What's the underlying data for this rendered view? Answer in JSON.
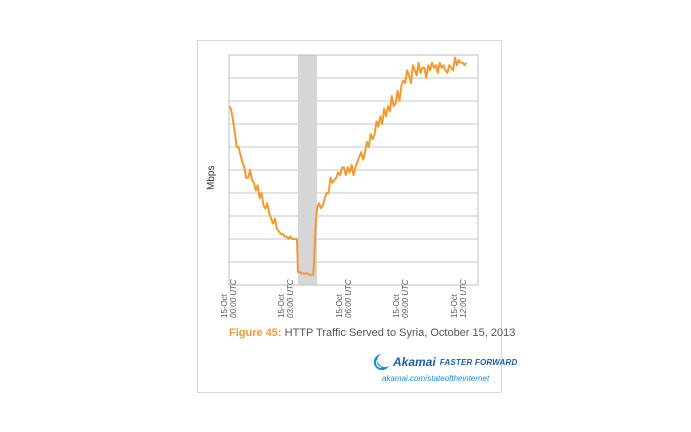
{
  "chart_data": {
    "type": "line",
    "ylabel": "Mbps",
    "x_ticks": [
      {
        "line1": "15-Oct",
        "line2": "00:00 UTC",
        "hour": 0
      },
      {
        "line1": "15-Oct",
        "line2": "03:00 UTC",
        "hour": 3
      },
      {
        "line1": "15-Oct",
        "line2": "06:00 UTC",
        "hour": 6
      },
      {
        "line1": "15-Oct",
        "line2": "09:00 UTC",
        "hour": 9
      },
      {
        "line1": "15-Oct",
        "line2": "12:00 UTC",
        "hour": 12
      }
    ],
    "xlim": [
      0,
      13
    ],
    "ylim": [
      0,
      9
    ],
    "grid": true,
    "shaded_region": [
      3.6,
      4.6
    ],
    "line_color": "#f39a2e",
    "shade_color": "#d6d6d6",
    "series": [
      {
        "x": [
          0.0,
          0.1,
          0.2,
          0.3,
          0.4,
          0.5,
          0.6,
          0.7,
          0.8,
          0.9,
          1.0,
          1.1,
          1.2,
          1.3,
          1.4,
          1.5,
          1.6,
          1.7,
          1.8,
          1.9,
          2.0,
          2.1,
          2.2,
          2.3,
          2.4,
          2.5,
          2.6,
          2.7,
          2.8,
          2.9,
          3.0,
          3.1,
          3.2,
          3.3,
          3.4,
          3.5,
          3.55,
          3.6,
          3.7,
          3.8,
          3.9,
          4.0,
          4.1,
          4.2,
          4.3,
          4.4,
          4.45,
          4.5,
          4.55,
          4.6,
          4.7,
          4.8,
          4.9,
          5.0,
          5.1,
          5.2,
          5.3,
          5.4,
          5.5,
          5.6,
          5.7,
          5.8,
          5.9,
          6.0,
          6.1,
          6.2,
          6.3,
          6.4,
          6.5,
          6.6,
          6.7,
          6.8,
          6.9,
          7.0,
          7.1,
          7.2,
          7.3,
          7.4,
          7.5,
          7.6,
          7.7,
          7.8,
          7.9,
          8.0,
          8.1,
          8.2,
          8.3,
          8.4,
          8.5,
          8.6,
          8.7,
          8.8,
          8.9,
          9.0,
          9.1,
          9.2,
          9.3,
          9.4,
          9.5,
          9.6,
          9.7,
          9.8,
          9.9,
          10.0,
          10.1,
          10.2,
          10.3,
          10.4,
          10.5,
          10.6,
          10.7,
          10.8,
          10.9,
          11.0,
          11.1,
          11.2,
          11.3,
          11.4,
          11.5,
          11.6,
          11.7,
          11.8,
          11.9,
          12.0,
          12.1,
          12.2,
          12.3,
          12.4
        ],
        "y": [
          7.0,
          6.9,
          6.5,
          6.0,
          5.4,
          5.4,
          5.1,
          4.8,
          4.6,
          4.2,
          4.2,
          4.5,
          4.1,
          4.0,
          3.7,
          3.9,
          3.4,
          3.6,
          3.1,
          3.0,
          3.2,
          2.8,
          2.6,
          2.4,
          2.6,
          2.2,
          2.1,
          2.0,
          2.0,
          1.9,
          1.9,
          1.8,
          1.9,
          1.8,
          1.8,
          1.8,
          1.8,
          0.5,
          0.5,
          0.45,
          0.45,
          0.45,
          0.45,
          0.4,
          0.4,
          0.4,
          1.0,
          2.0,
          2.6,
          3.0,
          3.2,
          3.0,
          3.1,
          3.4,
          3.6,
          3.6,
          4.2,
          4.0,
          4.1,
          4.2,
          4.4,
          4.3,
          4.6,
          4.6,
          4.3,
          4.6,
          4.4,
          4.7,
          4.3,
          4.6,
          4.8,
          5.0,
          5.2,
          4.9,
          5.2,
          5.6,
          5.4,
          5.9,
          5.7,
          5.9,
          6.4,
          6.2,
          6.6,
          6.3,
          6.9,
          6.6,
          7.0,
          6.8,
          7.4,
          7.0,
          7.1,
          7.6,
          7.2,
          7.8,
          8.0,
          7.9,
          8.4,
          8.2,
          7.9,
          8.6,
          8.4,
          8.2,
          8.7,
          8.3,
          8.5,
          8.5,
          8.1,
          8.6,
          8.4,
          8.7,
          8.5,
          8.6,
          8.3,
          8.7,
          8.5,
          8.6,
          8.4,
          8.3,
          8.6,
          8.5,
          8.4,
          8.9,
          8.6,
          8.8,
          8.7,
          8.7,
          8.6,
          8.7
        ]
      }
    ]
  },
  "caption": {
    "figure": "Figure 45:",
    "text": "HTTP Traffic Served to Syria, October 15, 2013"
  },
  "logo": {
    "brand": "Akamai",
    "tagline": "FASTER FORWARD",
    "url": "akamai.com/stateoftheinternet"
  }
}
